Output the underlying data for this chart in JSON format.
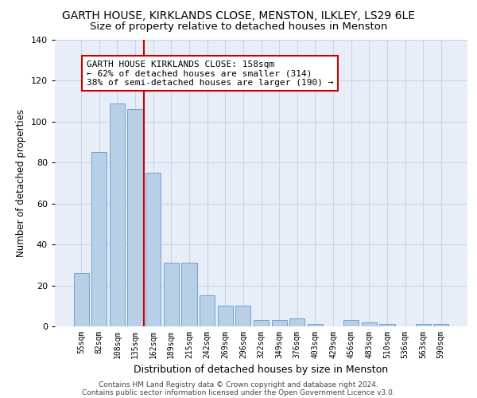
{
  "title1": "GARTH HOUSE, KIRKLANDS CLOSE, MENSTON, ILKLEY, LS29 6LE",
  "title2": "Size of property relative to detached houses in Menston",
  "xlabel": "Distribution of detached houses by size in Menston",
  "ylabel": "Number of detached properties",
  "footer_line1": "Contains HM Land Registry data © Crown copyright and database right 2024.",
  "footer_line2": "Contains public sector information licensed under the Open Government Licence v3.0.",
  "categories": [
    "55sqm",
    "82sqm",
    "108sqm",
    "135sqm",
    "162sqm",
    "189sqm",
    "215sqm",
    "242sqm",
    "269sqm",
    "296sqm",
    "322sqm",
    "349sqm",
    "376sqm",
    "403sqm",
    "429sqm",
    "456sqm",
    "483sqm",
    "510sqm",
    "536sqm",
    "563sqm",
    "590sqm"
  ],
  "values": [
    26,
    85,
    109,
    106,
    75,
    31,
    31,
    15,
    10,
    10,
    3,
    3,
    4,
    1,
    0,
    3,
    2,
    1,
    0,
    1,
    1
  ],
  "bar_color": "#b8cfe8",
  "bar_edge_color": "#6896c8",
  "vline_index": 4,
  "vline_color": "#cc0000",
  "annotation_text": "GARTH HOUSE KIRKLANDS CLOSE: 158sqm\n← 62% of detached houses are smaller (314)\n38% of semi-detached houses are larger (190) →",
  "annotation_box_color": "white",
  "annotation_box_edge_color": "#cc0000",
  "ylim": [
    0,
    140
  ],
  "yticks": [
    0,
    20,
    40,
    60,
    80,
    100,
    120,
    140
  ],
  "grid_color": "#c8d4e8",
  "background_color": "#e8eef8",
  "title1_fontsize": 10,
  "title2_fontsize": 9.5,
  "xlabel_fontsize": 9,
  "ylabel_fontsize": 8.5,
  "annotation_fontsize": 8,
  "footer_fontsize": 6.5
}
